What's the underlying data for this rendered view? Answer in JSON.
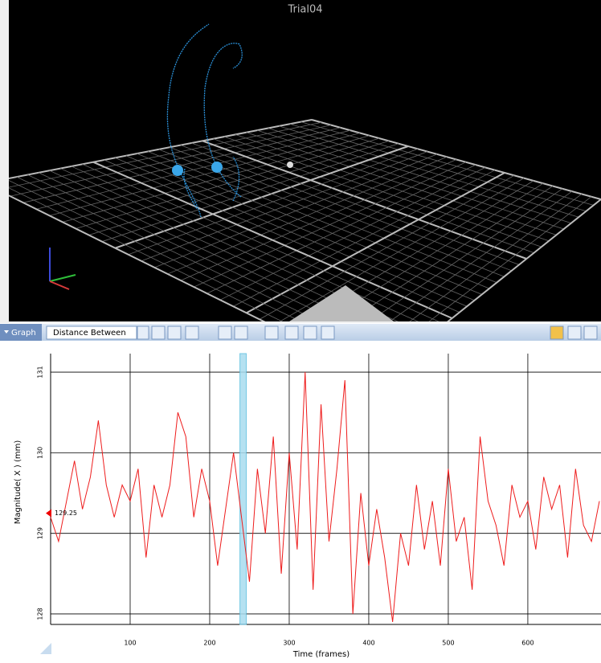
{
  "viewport": {
    "title": "Trial04"
  },
  "toolbar": {
    "panel": "Graph",
    "dropdown": "Distance Between"
  },
  "chart_data": {
    "type": "line",
    "ylabel": "Magnitude( X ) (mm)",
    "xlabel": "Time (frames)",
    "x": [
      0,
      10,
      20,
      30,
      40,
      50,
      60,
      70,
      80,
      90,
      100,
      110,
      120,
      130,
      140,
      150,
      160,
      170,
      180,
      190,
      200,
      210,
      220,
      230,
      240,
      250,
      260,
      270,
      280,
      290,
      300,
      310,
      320,
      330,
      340,
      350,
      360,
      370,
      380,
      390,
      400,
      410,
      420,
      430,
      440,
      450,
      460,
      470,
      480,
      490,
      500,
      510,
      520,
      530,
      540,
      550,
      560,
      570,
      580,
      590,
      600,
      610,
      620,
      630,
      640,
      650,
      660,
      670,
      680,
      690
    ],
    "values": [
      129.2,
      128.9,
      129.4,
      129.9,
      129.3,
      129.7,
      130.4,
      129.6,
      129.2,
      129.6,
      129.4,
      129.8,
      128.7,
      129.6,
      129.2,
      129.6,
      130.5,
      130.2,
      129.2,
      129.8,
      129.4,
      128.6,
      129.3,
      130.0,
      129.2,
      128.4,
      129.8,
      129.0,
      130.2,
      128.5,
      130.0,
      128.8,
      131.0,
      128.3,
      130.6,
      128.9,
      129.8,
      130.9,
      128.0,
      129.5,
      128.6,
      129.3,
      128.7,
      127.9,
      129.0,
      128.6,
      129.6,
      128.8,
      129.4,
      128.6,
      129.8,
      128.9,
      129.2,
      128.3,
      130.2,
      129.4,
      129.1,
      128.6,
      129.6,
      129.2,
      129.4,
      128.8,
      129.7,
      129.3,
      129.6,
      128.7,
      129.8,
      129.1,
      128.9,
      129.4
    ],
    "color": "#ee1c1c",
    "xlim": [
      0,
      692
    ],
    "ylim": [
      127.87,
      131.23
    ],
    "xticks": [
      100,
      200,
      300,
      400,
      500,
      600
    ],
    "yticks": [
      128,
      129,
      130,
      131
    ],
    "grid": true,
    "cursor_range": [
      238,
      246
    ],
    "marker_value": 129.25
  }
}
